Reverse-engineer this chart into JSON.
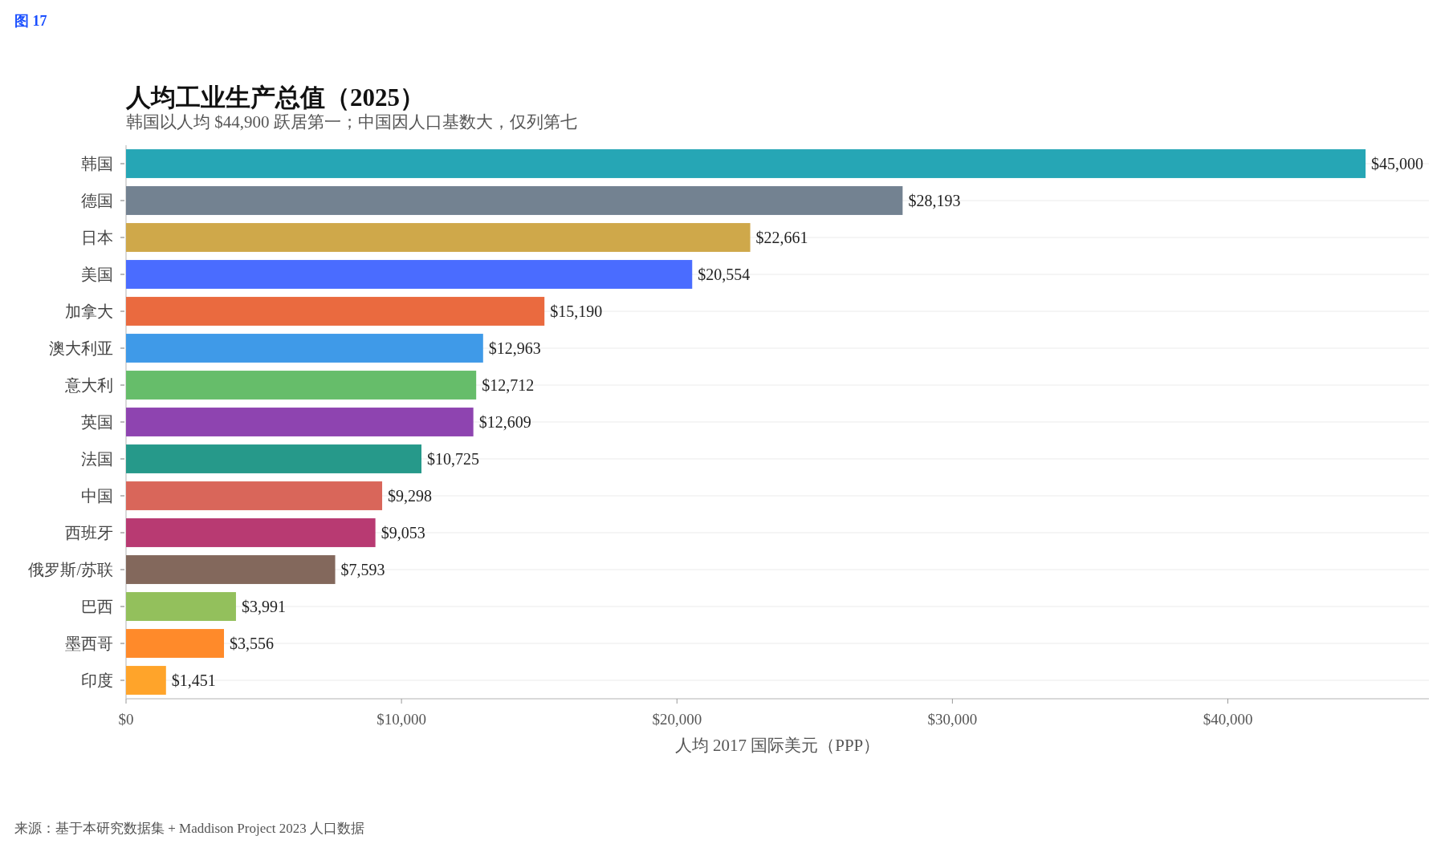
{
  "chart_data": {
    "type": "bar",
    "orientation": "horizontal",
    "title": "人均工业生产总值（2025）",
    "subtitle": "韩国以人均 $44,900 跃居第一；中国因人口基数大，仅列第七",
    "xlabel": "人均 2017 国际美元（PPP）",
    "categories": [
      "韩国",
      "德国",
      "日本",
      "美国",
      "加拿大",
      "澳大利亚",
      "意大利",
      "英国",
      "法国",
      "中国",
      "西班牙",
      "俄罗斯/苏联",
      "巴西",
      "墨西哥",
      "印度"
    ],
    "values": [
      45000,
      28193,
      22661,
      20554,
      15190,
      12963,
      12712,
      12609,
      10725,
      9298,
      9053,
      7593,
      3991,
      3556,
      1451
    ],
    "value_labels": [
      "$45,000",
      "$28,193",
      "$22,661",
      "$20,554",
      "$15,190",
      "$12,963",
      "$12,712",
      "$12,609",
      "$10,725",
      "$9,298",
      "$9,053",
      "$7,593",
      "$3,991",
      "$3,556",
      "$1,451"
    ],
    "colors": [
      "#26a6b5",
      "#738291",
      "#cfa84a",
      "#4a6cff",
      "#ea6a3f",
      "#3f9ae8",
      "#66bd6a",
      "#8e44b0",
      "#26998a",
      "#d9665a",
      "#b83a72",
      "#83685c",
      "#93c05c",
      "#ff8a2a",
      "#ffa42a"
    ],
    "xlim": [
      0,
      47300
    ],
    "xticks": [
      {
        "value": 0,
        "label": "$0"
      },
      {
        "value": 10000,
        "label": "$10,000"
      },
      {
        "value": 20000,
        "label": "$20,000"
      },
      {
        "value": 30000,
        "label": "$30,000"
      },
      {
        "value": 40000,
        "label": "$40,000"
      }
    ],
    "grid": "y",
    "annotations": [
      "图 17",
      "来源：基于本研究数据集 + Maddison Project 2023 人口数据"
    ]
  }
}
